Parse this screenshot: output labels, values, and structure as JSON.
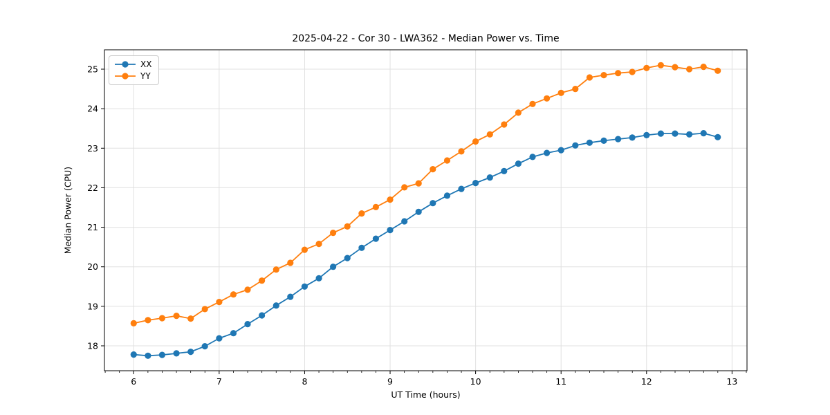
{
  "figure": {
    "title": "2025-04-22 - Cor 30 - LWA362 - Median Power vs. Time"
  },
  "chart_data": {
    "type": "line",
    "title": "2025-04-22 - Cor 30 - LWA362 - Median Power vs. Time",
    "xlabel": "UT Time (hours)",
    "ylabel": "Median Power (CPU)",
    "xlim": [
      5.658,
      13.175
    ],
    "ylim": [
      17.37,
      25.49
    ],
    "x_ticks": [
      6,
      7,
      8,
      9,
      10,
      11,
      12,
      13
    ],
    "y_ticks": [
      18,
      19,
      20,
      21,
      22,
      23,
      24,
      25
    ],
    "x_minor_step": 0.16667,
    "grid": true,
    "grid_color": "#e0e0e0",
    "legend_position": "upper-left",
    "x": [
      6.0,
      6.167,
      6.333,
      6.5,
      6.667,
      6.833,
      7.0,
      7.167,
      7.333,
      7.5,
      7.667,
      7.833,
      8.0,
      8.167,
      8.333,
      8.5,
      8.667,
      8.833,
      9.0,
      9.167,
      9.333,
      9.5,
      9.667,
      9.833,
      10.0,
      10.167,
      10.333,
      10.5,
      10.667,
      10.833,
      11.0,
      11.167,
      11.333,
      11.5,
      11.667,
      11.833,
      12.0,
      12.167,
      12.333,
      12.5,
      12.667,
      12.833
    ],
    "series": [
      {
        "name": "XX",
        "color": "#1f77b4",
        "values": [
          17.78,
          17.75,
          17.77,
          17.81,
          17.85,
          17.99,
          18.19,
          18.32,
          18.55,
          18.77,
          19.02,
          19.24,
          19.5,
          19.71,
          20.0,
          20.22,
          20.48,
          20.71,
          20.93,
          21.15,
          21.39,
          21.61,
          21.8,
          21.97,
          22.12,
          22.26,
          22.42,
          22.61,
          22.78,
          22.88,
          22.95,
          23.07,
          23.14,
          23.19,
          23.23,
          23.27,
          23.33,
          23.37,
          23.37,
          23.35,
          23.38,
          23.28
        ]
      },
      {
        "name": "YY",
        "color": "#ff7f0e",
        "values": [
          18.57,
          18.65,
          18.7,
          18.76,
          18.69,
          18.93,
          19.11,
          19.3,
          19.42,
          19.65,
          19.93,
          20.1,
          20.43,
          20.58,
          20.86,
          21.02,
          21.35,
          21.51,
          21.7,
          22.01,
          22.11,
          22.47,
          22.69,
          22.92,
          23.17,
          23.35,
          23.6,
          23.9,
          24.12,
          24.26,
          24.4,
          24.5,
          24.79,
          24.85,
          24.9,
          24.93,
          25.03,
          25.1,
          25.05,
          25.0,
          25.06,
          24.96
        ]
      }
    ]
  }
}
